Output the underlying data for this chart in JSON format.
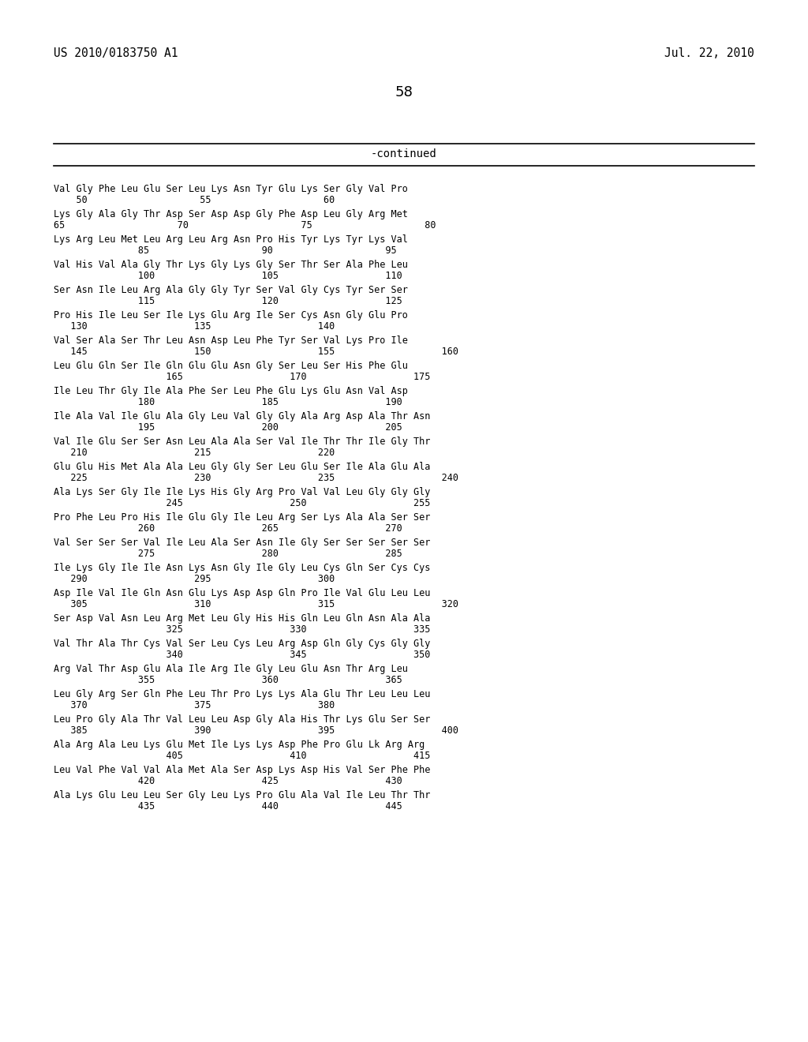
{
  "header_left": "US 2010/0183750 A1",
  "header_right": "Jul. 22, 2010",
  "page_number": "58",
  "continued_label": "-continued",
  "background_color": "#ffffff",
  "text_color": "#000000",
  "seq_data": [
    [
      "Val Gly Phe Leu Glu Ser Leu Lys Asn Tyr Glu Lys Ser Gly Val Pro",
      "    50                    55                    60"
    ],
    [
      "Lys Gly Ala Gly Thr Asp Ser Asp Asp Gly Phe Asp Leu Gly Arg Met",
      "65                    70                    75                    80"
    ],
    [
      "Lys Arg Leu Met Leu Arg Leu Arg Asn Pro His Tyr Lys Tyr Lys Val",
      "               85                    90                    95"
    ],
    [
      "Val His Val Ala Gly Thr Lys Gly Lys Gly Ser Thr Ser Ala Phe Leu",
      "               100                   105                   110"
    ],
    [
      "Ser Asn Ile Leu Arg Ala Gly Gly Tyr Ser Val Gly Cys Tyr Ser Ser",
      "               115                   120                   125"
    ],
    [
      "Pro His Ile Leu Ser Ile Lys Glu Arg Ile Ser Cys Asn Gly Glu Pro",
      "   130                   135                   140"
    ],
    [
      "Val Ser Ala Ser Thr Leu Asn Asp Leu Phe Tyr Ser Val Lys Pro Ile",
      "   145                   150                   155                   160"
    ],
    [
      "Leu Glu Gln Ser Ile Gln Glu Glu Asn Gly Ser Leu Ser His Phe Glu",
      "                    165                   170                   175"
    ],
    [
      "Ile Leu Thr Gly Ile Ala Phe Ser Leu Phe Glu Lys Glu Asn Val Asp",
      "               180                   185                   190"
    ],
    [
      "Ile Ala Val Ile Glu Ala Gly Leu Val Gly Gly Ala Arg Asp Ala Thr Asn",
      "               195                   200                   205"
    ],
    [
      "Val Ile Glu Ser Ser Asn Leu Ala Ala Ser Val Ile Thr Thr Ile Gly Thr",
      "   210                   215                   220"
    ],
    [
      "Glu Glu His Met Ala Ala Leu Gly Gly Ser Leu Glu Ser Ile Ala Glu Ala",
      "   225                   230                   235                   240"
    ],
    [
      "Ala Lys Ser Gly Ile Ile Lys His Gly Arg Pro Val Val Leu Gly Gly Gly",
      "                    245                   250                   255"
    ],
    [
      "Pro Phe Leu Pro His Ile Glu Gly Ile Leu Arg Ser Lys Ala Ala Ser Ser",
      "               260                   265                   270"
    ],
    [
      "Val Ser Ser Ser Val Ile Leu Ala Ser Asn Ile Gly Ser Ser Ser Ser Ser",
      "               275                   280                   285"
    ],
    [
      "Ile Lys Gly Ile Ile Asn Lys Asn Gly Ile Gly Leu Cys Gln Ser Cys Cys",
      "   290                   295                   300"
    ],
    [
      "Asp Ile Val Ile Gln Asn Glu Lys Asp Asp Gln Pro Ile Val Glu Leu Leu",
      "   305                   310                   315                   320"
    ],
    [
      "Ser Asp Val Asn Leu Arg Met Leu Gly His His Gln Leu Gln Asn Ala Ala",
      "                    325                   330                   335"
    ],
    [
      "Val Thr Ala Thr Cys Val Ser Leu Cys Leu Arg Asp Gln Gly Cys Gly Gly",
      "                    340                   345                   350"
    ],
    [
      "Arg Val Thr Asp Glu Ala Ile Arg Ile Gly Leu Glu Asn Thr Arg Leu",
      "               355                   360                   365"
    ],
    [
      "Leu Gly Arg Ser Gln Phe Leu Thr Pro Lys Lys Ala Glu Thr Leu Leu Leu",
      "   370                   375                   380"
    ],
    [
      "Leu Pro Gly Ala Thr Val Leu Leu Asp Gly Ala His Thr Lys Glu Ser Ser",
      "   385                   390                   395                   400"
    ],
    [
      "Ala Arg Ala Leu Lys Glu Met Ile Lys Lys Asp Phe Pro Glu Lk Arg Arg",
      "                    405                   410                   415"
    ],
    [
      "Leu Val Phe Val Val Ala Met Ala Ser Asp Lys Asp His Val Ser Phe Phe",
      "               420                   425                   430"
    ],
    [
      "Ala Lys Glu Leu Leu Ser Gly Leu Lys Pro Glu Ala Val Ile Leu Thr Thr",
      "               435                   440                   445"
    ]
  ]
}
